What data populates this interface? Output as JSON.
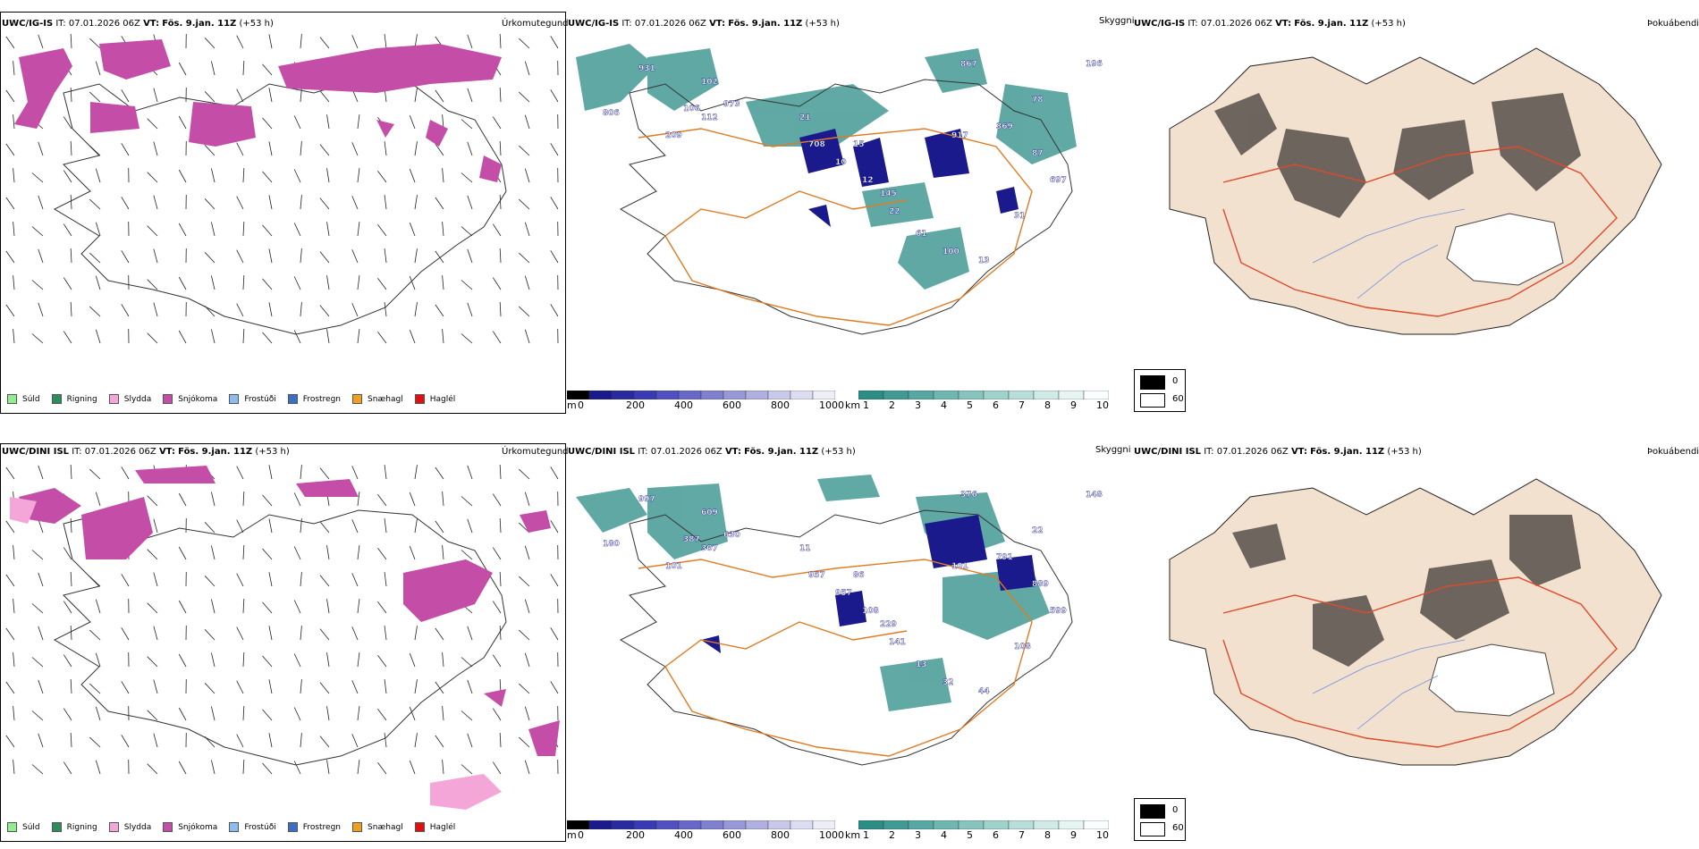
{
  "colors": {
    "snow": "#c44ea7",
    "sleet": "#f4a6d9",
    "rain": "#2e8b5a",
    "drizzle": "#90ee90",
    "teal": "#2c8c86",
    "navy": "#1a1a8c",
    "roads": "#e07b22",
    "land": "#f3e1d0",
    "mask": "#000000"
  },
  "row1": {
    "precip": {
      "model": "UWC/IG-IS",
      "it_label": "IT:",
      "it_value": "07.01.2026 06Z",
      "vt_label": "VT:",
      "vt_value": "Fös. 9.jan. 11Z",
      "lead": "(+53 h)",
      "product": "Úrkomutegund"
    },
    "vis": {
      "model": "UWC/IG-IS",
      "it_label": "IT:",
      "it_value": "07.01.2026 06Z",
      "vt_label": "VT:",
      "vt_value": "Fös. 9.jan. 11Z",
      "lead": "(+53 h)",
      "product": "Skyggni"
    },
    "fog": {
      "model": "UWC/IG-IS",
      "it_label": "IT:",
      "it_value": "07.01.2026 06Z",
      "vt_label": "VT:",
      "vt_value": "Fös. 9.jan. 11Z",
      "lead": "(+53 h)",
      "product": "Þokuábendi"
    },
    "labels": [
      "931",
      "806",
      "209",
      "106",
      "112",
      "973",
      "21",
      "708",
      "10",
      "12",
      "145",
      "917",
      "369",
      "87",
      "697",
      "867",
      "196",
      "102",
      "15",
      "22",
      "61",
      "100",
      "13",
      "31",
      "78"
    ]
  },
  "row2": {
    "precip": {
      "model": "UWC/DINI ISL",
      "it_label": "IT:",
      "it_value": "07.01.2026 06Z",
      "vt_label": "VT:",
      "vt_value": "Fös. 9.jan. 11Z",
      "lead": "(+53 h)",
      "product": "Úrkomutegund"
    },
    "vis": {
      "model": "UWC/DINI ISL",
      "it_label": "IT:",
      "it_value": "07.01.2026 06Z",
      "vt_label": "VT:",
      "vt_value": "Fös. 9.jan. 11Z",
      "lead": "(+53 h)",
      "product": "Skyggni"
    },
    "fog": {
      "model": "UWC/DINI ISL",
      "it_label": "IT:",
      "it_value": "07.01.2026 06Z",
      "vt_label": "VT:",
      "vt_value": "Fös. 9.jan. 11Z",
      "lead": "(+53 h)",
      "product": "Þokuábendi"
    },
    "labels": [
      "997",
      "180",
      "101",
      "387",
      "307",
      "630",
      "11",
      "957",
      "957",
      "108",
      "229",
      "101",
      "791",
      "889",
      "599",
      "376",
      "148",
      "609",
      "86",
      "141",
      "13",
      "32",
      "44",
      "108",
      "22"
    ]
  },
  "precip_legend": [
    {
      "label": "Súld",
      "color": "#90ee90"
    },
    {
      "label": "Rigning",
      "color": "#2e8b5a"
    },
    {
      "label": "Slydda",
      "color": "#f4a6d9"
    },
    {
      "label": "Snjókoma",
      "color": "#c44ea7"
    },
    {
      "label": "Frostúði",
      "color": "#8fbcef"
    },
    {
      "label": "Frostregn",
      "color": "#3b6fc4"
    },
    {
      "label": "Snæhagl",
      "color": "#f0a020"
    },
    {
      "label": "Haglél",
      "color": "#e01010"
    }
  ],
  "ceiling_bar": {
    "unit": "m",
    "ticks": [
      "0",
      "200",
      "400",
      "600",
      "800",
      "1000"
    ]
  },
  "vis_bar": {
    "unit": "km",
    "ticks": [
      "1",
      "2",
      "3",
      "4",
      "5",
      "6",
      "7",
      "8",
      "9",
      "10"
    ]
  },
  "fog_legend": {
    "high": "0",
    "low": "60"
  }
}
